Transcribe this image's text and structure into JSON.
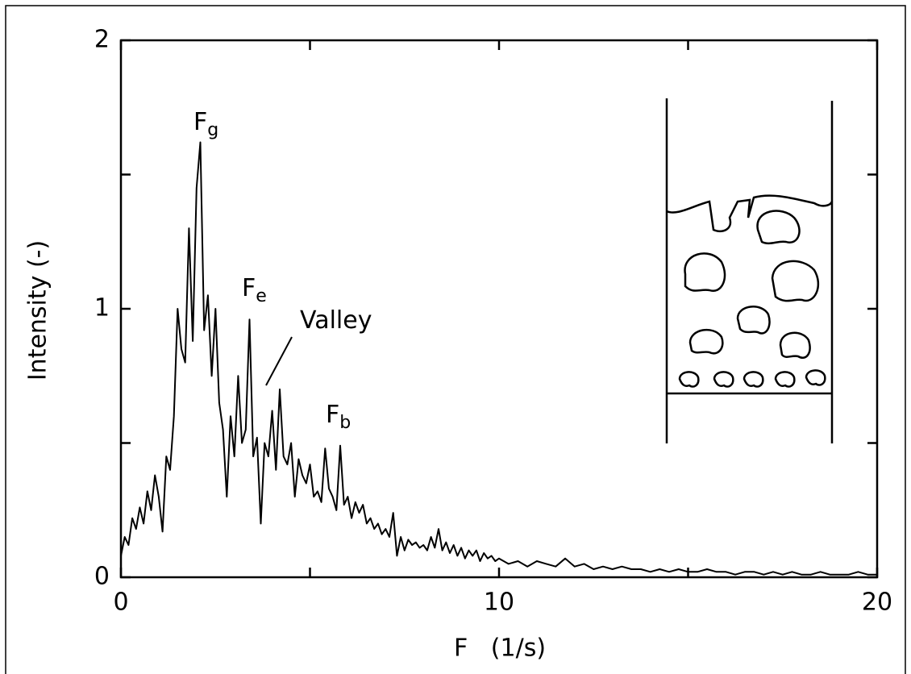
{
  "chart_data": {
    "type": "line",
    "xlabel": "F   (1/s)",
    "ylabel": "Intensity (-)",
    "xlim": [
      0,
      20
    ],
    "ylim": [
      0,
      2
    ],
    "xticks": [
      0,
      10,
      20
    ],
    "yticks": [
      0,
      1,
      2
    ],
    "xminorticks": [
      5,
      15
    ],
    "yminorticks": [
      0.5,
      1.5
    ],
    "grid": false,
    "color": "#000000",
    "annotations": [
      {
        "text": "F",
        "subscript": "g"
      },
      {
        "text": "F",
        "subscript": "e"
      },
      {
        "text": "Valley"
      },
      {
        "text": "F",
        "subscript": "b"
      }
    ],
    "x": [
      0,
      0.1,
      0.2,
      0.3,
      0.4,
      0.5,
      0.6,
      0.7,
      0.8,
      0.9,
      1,
      1.1,
      1.2,
      1.3,
      1.4,
      1.5,
      1.6,
      1.7,
      1.8,
      1.9,
      2,
      2.1,
      2.2,
      2.3,
      2.4,
      2.5,
      2.6,
      2.7,
      2.8,
      2.9,
      3,
      3.1,
      3.2,
      3.3,
      3.4,
      3.5,
      3.6,
      3.7,
      3.8,
      3.9,
      4,
      4.1,
      4.2,
      4.3,
      4.4,
      4.5,
      4.6,
      4.7,
      4.8,
      4.9,
      5,
      5.1,
      5.2,
      5.3,
      5.4,
      5.5,
      5.6,
      5.7,
      5.8,
      5.9,
      6,
      6.1,
      6.2,
      6.3,
      6.4,
      6.5,
      6.6,
      6.7,
      6.8,
      6.9,
      7,
      7.1,
      7.2,
      7.3,
      7.4,
      7.5,
      7.6,
      7.7,
      7.8,
      7.9,
      8,
      8.1,
      8.2,
      8.3,
      8.4,
      8.5,
      8.6,
      8.7,
      8.8,
      8.9,
      9,
      9.1,
      9.2,
      9.3,
      9.4,
      9.5,
      9.6,
      9.7,
      9.8,
      9.9,
      10,
      10.25,
      10.5,
      10.75,
      11,
      11.25,
      11.5,
      11.75,
      12,
      12.25,
      12.5,
      12.75,
      13,
      13.25,
      13.5,
      13.75,
      14,
      14.25,
      14.5,
      14.75,
      15,
      15.25,
      15.5,
      15.75,
      16,
      16.25,
      16.5,
      16.75,
      17,
      17.25,
      17.5,
      17.75,
      18,
      18.25,
      18.5,
      18.75,
      19,
      19.25,
      19.5,
      19.75,
      20
    ],
    "values": [
      0.08,
      0.15,
      0.12,
      0.22,
      0.18,
      0.26,
      0.2,
      0.32,
      0.25,
      0.38,
      0.3,
      0.17,
      0.45,
      0.4,
      0.6,
      1.0,
      0.85,
      0.8,
      1.3,
      0.88,
      1.45,
      1.62,
      0.92,
      1.05,
      0.75,
      1.0,
      0.65,
      0.55,
      0.3,
      0.6,
      0.45,
      0.75,
      0.5,
      0.55,
      0.96,
      0.45,
      0.52,
      0.2,
      0.5,
      0.45,
      0.62,
      0.4,
      0.7,
      0.45,
      0.42,
      0.5,
      0.3,
      0.44,
      0.38,
      0.35,
      0.42,
      0.3,
      0.32,
      0.28,
      0.48,
      0.33,
      0.3,
      0.25,
      0.49,
      0.27,
      0.3,
      0.22,
      0.28,
      0.24,
      0.27,
      0.2,
      0.22,
      0.18,
      0.2,
      0.16,
      0.18,
      0.15,
      0.24,
      0.08,
      0.15,
      0.1,
      0.14,
      0.12,
      0.13,
      0.11,
      0.12,
      0.1,
      0.15,
      0.11,
      0.18,
      0.1,
      0.13,
      0.09,
      0.12,
      0.08,
      0.11,
      0.07,
      0.1,
      0.08,
      0.1,
      0.06,
      0.09,
      0.07,
      0.08,
      0.06,
      0.07,
      0.05,
      0.06,
      0.04,
      0.06,
      0.05,
      0.04,
      0.07,
      0.04,
      0.05,
      0.03,
      0.04,
      0.03,
      0.04,
      0.03,
      0.03,
      0.02,
      0.03,
      0.02,
      0.03,
      0.02,
      0.02,
      0.03,
      0.02,
      0.02,
      0.01,
      0.02,
      0.02,
      0.01,
      0.02,
      0.01,
      0.02,
      0.01,
      0.01,
      0.02,
      0.01,
      0.01,
      0.01,
      0.02,
      0.01,
      0.01
    ]
  }
}
